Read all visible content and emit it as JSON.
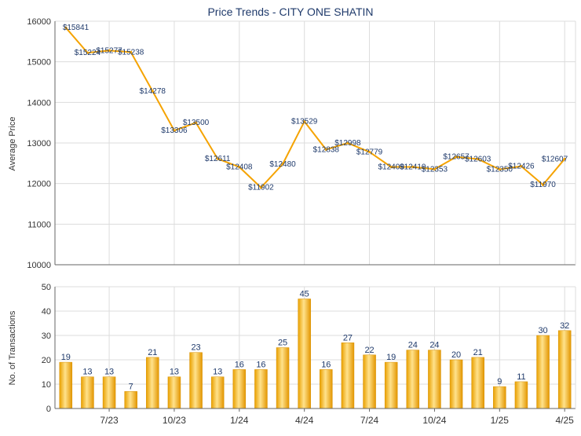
{
  "title": "Price Trends - CITY ONE SHATIN",
  "chart_data": [
    {
      "type": "line",
      "ylabel": "Average Price",
      "ylim": [
        10000,
        16000
      ],
      "yticks": [
        "10000",
        "11000",
        "12000",
        "13000",
        "14000",
        "15000",
        "16000"
      ],
      "grid": true,
      "series": [
        {
          "values": [
            15841,
            15224,
            15277,
            15238,
            14278,
            13306,
            13500,
            12611,
            12408,
            11902,
            12480,
            13529,
            12838,
            12998,
            12779,
            12409,
            12410,
            12353,
            12657,
            12603,
            12350,
            12426,
            11970,
            12607
          ],
          "labels": [
            "$15841",
            "$15224",
            "$15277",
            "$15238",
            "$14278",
            "$13306",
            "$13500",
            "$12611",
            "$12408",
            "$11902",
            "$12480",
            "$13529",
            "$12838",
            "$12998",
            "$12779",
            "$12409",
            "$12410",
            "$12353",
            "$12657",
            "$12603",
            "$12350",
            "$12426",
            "$11970",
            "$12607"
          ],
          "color": "#f5a300"
        }
      ]
    },
    {
      "type": "bar",
      "ylabel": "No. of Transactions",
      "ylim": [
        0,
        50
      ],
      "yticks": [
        "0",
        "10",
        "20",
        "30",
        "40",
        "50"
      ],
      "grid": true,
      "values": [
        19,
        13,
        13,
        7,
        21,
        13,
        23,
        13,
        16,
        16,
        25,
        45,
        16,
        27,
        22,
        19,
        24,
        24,
        20,
        21,
        9,
        11,
        30,
        32
      ],
      "xticks": [
        {
          "index": 2,
          "label": "7/23"
        },
        {
          "index": 5,
          "label": "10/23"
        },
        {
          "index": 8,
          "label": "1/24"
        },
        {
          "index": 11,
          "label": "4/24"
        },
        {
          "index": 14,
          "label": "7/24"
        },
        {
          "index": 17,
          "label": "10/24"
        },
        {
          "index": 20,
          "label": "1/25"
        },
        {
          "index": 23,
          "label": "4/25"
        }
      ],
      "color": "#f0a81a"
    }
  ],
  "colors": {
    "line": "#f5a300",
    "bar_light": "#ffe08a",
    "bar_dark": "#e69a00",
    "grid": "#d9d9d9",
    "axis": "#333333",
    "title": "#1f3a6b",
    "label": "#1f3a6b"
  }
}
